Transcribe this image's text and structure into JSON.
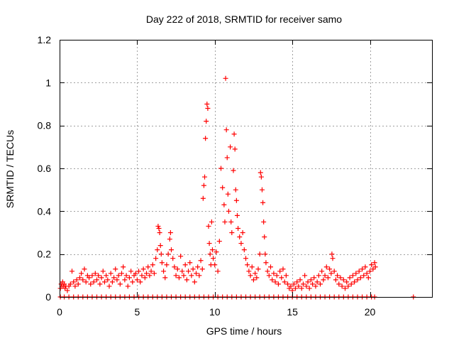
{
  "chart_data": {
    "type": "scatter",
    "title": "Day 222 of 2018, SRMTID for receiver samo",
    "xlabel": "GPS time / hours",
    "ylabel": "SRMTID / TECUs",
    "xlim": [
      0,
      24
    ],
    "ylim": [
      0,
      1.2
    ],
    "x_ticks": [
      0,
      5,
      10,
      15,
      20
    ],
    "x_tick_labels": [
      "0",
      "5",
      "10",
      "15",
      "20"
    ],
    "y_ticks": [
      0,
      0.2,
      0.4,
      0.6,
      0.8,
      1.0,
      1.2
    ],
    "y_tick_labels": [
      "0",
      "0.2",
      "0.4",
      "0.6",
      "0.8",
      "1",
      "1.2"
    ],
    "grid": true,
    "marker": "+",
    "series": [
      {
        "name": "SRMTID",
        "color": "#ff0000",
        "points": [
          [
            0.05,
            0.04
          ],
          [
            0.1,
            0.06
          ],
          [
            0.15,
            0.05
          ],
          [
            0.2,
            0.07
          ],
          [
            0.25,
            0.05
          ],
          [
            0.3,
            0.06
          ],
          [
            0.35,
            0.04
          ],
          [
            0.4,
            0.05
          ],
          [
            0.5,
            0.03
          ],
          [
            0.6,
            0.05
          ],
          [
            0.7,
            0.06
          ],
          [
            0.8,
            0.12
          ],
          [
            0.9,
            0.07
          ],
          [
            1.0,
            0.05
          ],
          [
            1.1,
            0.08
          ],
          [
            1.2,
            0.06
          ],
          [
            1.3,
            0.09
          ],
          [
            1.4,
            0.11
          ],
          [
            1.5,
            0.08
          ],
          [
            1.6,
            0.13
          ],
          [
            1.7,
            0.07
          ],
          [
            1.8,
            0.1
          ],
          [
            1.9,
            0.09
          ],
          [
            2.0,
            0.06
          ],
          [
            2.1,
            0.1
          ],
          [
            2.2,
            0.07
          ],
          [
            2.3,
            0.11
          ],
          [
            2.4,
            0.08
          ],
          [
            2.5,
            0.1
          ],
          [
            2.6,
            0.06
          ],
          [
            2.7,
            0.09
          ],
          [
            2.8,
            0.12
          ],
          [
            2.9,
            0.07
          ],
          [
            3.0,
            0.1
          ],
          [
            3.1,
            0.08
          ],
          [
            3.2,
            0.05
          ],
          [
            3.3,
            0.11
          ],
          [
            3.4,
            0.07
          ],
          [
            3.5,
            0.09
          ],
          [
            3.6,
            0.13
          ],
          [
            3.7,
            0.08
          ],
          [
            3.8,
            0.1
          ],
          [
            3.9,
            0.06
          ],
          [
            4.0,
            0.11
          ],
          [
            4.1,
            0.14
          ],
          [
            4.2,
            0.08
          ],
          [
            4.3,
            0.1
          ],
          [
            4.4,
            0.05
          ],
          [
            4.5,
            0.09
          ],
          [
            4.6,
            0.12
          ],
          [
            4.7,
            0.07
          ],
          [
            4.8,
            0.1
          ],
          [
            4.9,
            0.11
          ],
          [
            5.0,
            0.08
          ],
          [
            5.1,
            0.12
          ],
          [
            5.2,
            0.07
          ],
          [
            5.3,
            0.1
          ],
          [
            5.4,
            0.13
          ],
          [
            5.5,
            0.09
          ],
          [
            5.6,
            0.11
          ],
          [
            5.7,
            0.14
          ],
          [
            5.8,
            0.1
          ],
          [
            5.9,
            0.12
          ],
          [
            6.0,
            0.15
          ],
          [
            6.1,
            0.11
          ],
          [
            6.2,
            0.18
          ],
          [
            6.3,
            0.22
          ],
          [
            6.35,
            0.33
          ],
          [
            6.4,
            0.32
          ],
          [
            6.45,
            0.3
          ],
          [
            6.5,
            0.24
          ],
          [
            6.55,
            0.2
          ],
          [
            6.6,
            0.16
          ],
          [
            6.7,
            0.12
          ],
          [
            6.8,
            0.09
          ],
          [
            6.9,
            0.15
          ],
          [
            7.0,
            0.2
          ],
          [
            7.1,
            0.27
          ],
          [
            7.15,
            0.3
          ],
          [
            7.2,
            0.22
          ],
          [
            7.3,
            0.18
          ],
          [
            7.4,
            0.14
          ],
          [
            7.5,
            0.1
          ],
          [
            7.6,
            0.13
          ],
          [
            7.7,
            0.09
          ],
          [
            7.8,
            0.19
          ],
          [
            7.9,
            0.12
          ],
          [
            8.0,
            0.1
          ],
          [
            8.1,
            0.15
          ],
          [
            8.2,
            0.08
          ],
          [
            8.3,
            0.12
          ],
          [
            8.4,
            0.16
          ],
          [
            8.5,
            0.1
          ],
          [
            8.6,
            0.13
          ],
          [
            8.7,
            0.07
          ],
          [
            8.8,
            0.11
          ],
          [
            8.9,
            0.14
          ],
          [
            9.0,
            0.1
          ],
          [
            9.1,
            0.17
          ],
          [
            9.2,
            0.13
          ],
          [
            9.25,
            0.46
          ],
          [
            9.3,
            0.52
          ],
          [
            9.35,
            0.56
          ],
          [
            9.4,
            0.74
          ],
          [
            9.45,
            0.82
          ],
          [
            9.5,
            0.9
          ],
          [
            9.55,
            0.88
          ],
          [
            9.6,
            0.33
          ],
          [
            9.65,
            0.25
          ],
          [
            9.7,
            0.2
          ],
          [
            9.75,
            0.15
          ],
          [
            9.8,
            0.35
          ],
          [
            9.85,
            0.22
          ],
          [
            9.9,
            0.18
          ],
          [
            10.0,
            0.15
          ],
          [
            10.1,
            0.21
          ],
          [
            10.2,
            0.12
          ],
          [
            10.3,
            0.26
          ],
          [
            10.4,
            0.6
          ],
          [
            10.5,
            0.51
          ],
          [
            10.6,
            0.43
          ],
          [
            10.65,
            0.35
          ],
          [
            10.7,
            1.02
          ],
          [
            10.75,
            0.78
          ],
          [
            10.8,
            0.65
          ],
          [
            10.85,
            0.48
          ],
          [
            10.9,
            0.4
          ],
          [
            11.0,
            0.7
          ],
          [
            11.05,
            0.35
          ],
          [
            11.1,
            0.3
          ],
          [
            11.2,
            0.59
          ],
          [
            11.25,
            0.76
          ],
          [
            11.3,
            0.69
          ],
          [
            11.35,
            0.5
          ],
          [
            11.4,
            0.45
          ],
          [
            11.45,
            0.38
          ],
          [
            11.5,
            0.32
          ],
          [
            11.6,
            0.28
          ],
          [
            11.7,
            0.25
          ],
          [
            11.8,
            0.3
          ],
          [
            11.9,
            0.22
          ],
          [
            12.0,
            0.18
          ],
          [
            12.1,
            0.15
          ],
          [
            12.2,
            0.12
          ],
          [
            12.3,
            0.1
          ],
          [
            12.4,
            0.14
          ],
          [
            12.5,
            0.08
          ],
          [
            12.6,
            0.11
          ],
          [
            12.7,
            0.09
          ],
          [
            12.8,
            0.13
          ],
          [
            12.9,
            0.2
          ],
          [
            12.95,
            0.58
          ],
          [
            13.0,
            0.56
          ],
          [
            13.05,
            0.5
          ],
          [
            13.1,
            0.44
          ],
          [
            13.15,
            0.35
          ],
          [
            13.2,
            0.28
          ],
          [
            13.25,
            0.2
          ],
          [
            13.3,
            0.16
          ],
          [
            13.4,
            0.12
          ],
          [
            13.5,
            0.1
          ],
          [
            13.6,
            0.14
          ],
          [
            13.7,
            0.08
          ],
          [
            13.8,
            0.11
          ],
          [
            13.9,
            0.07
          ],
          [
            14.0,
            0.1
          ],
          [
            14.1,
            0.06
          ],
          [
            14.2,
            0.12
          ],
          [
            14.3,
            0.09
          ],
          [
            14.4,
            0.13
          ],
          [
            14.5,
            0.07
          ],
          [
            14.6,
            0.1
          ],
          [
            14.7,
            0.06
          ],
          [
            14.8,
            0.04
          ],
          [
            14.9,
            0.05
          ],
          [
            15.0,
            0.03
          ],
          [
            15.1,
            0.06
          ],
          [
            15.2,
            0.04
          ],
          [
            15.3,
            0.07
          ],
          [
            15.4,
            0.05
          ],
          [
            15.5,
            0.08
          ],
          [
            15.6,
            0.04
          ],
          [
            15.7,
            0.06
          ],
          [
            15.8,
            0.1
          ],
          [
            15.9,
            0.05
          ],
          [
            16.0,
            0.07
          ],
          [
            16.1,
            0.04
          ],
          [
            16.2,
            0.08
          ],
          [
            16.3,
            0.06
          ],
          [
            16.4,
            0.09
          ],
          [
            16.5,
            0.05
          ],
          [
            16.6,
            0.07
          ],
          [
            16.7,
            0.1
          ],
          [
            16.8,
            0.06
          ],
          [
            16.9,
            0.12
          ],
          [
            17.0,
            0.08
          ],
          [
            17.1,
            0.1
          ],
          [
            17.2,
            0.14
          ],
          [
            17.3,
            0.09
          ],
          [
            17.4,
            0.13
          ],
          [
            17.5,
            0.11
          ],
          [
            17.55,
            0.2
          ],
          [
            17.6,
            0.18
          ],
          [
            17.7,
            0.12
          ],
          [
            17.8,
            0.08
          ],
          [
            17.9,
            0.1
          ],
          [
            18.0,
            0.06
          ],
          [
            18.1,
            0.09
          ],
          [
            18.2,
            0.05
          ],
          [
            18.3,
            0.08
          ],
          [
            18.4,
            0.04
          ],
          [
            18.5,
            0.07
          ],
          [
            18.6,
            0.05
          ],
          [
            18.7,
            0.09
          ],
          [
            18.8,
            0.06
          ],
          [
            18.9,
            0.1
          ],
          [
            19.0,
            0.07
          ],
          [
            19.1,
            0.11
          ],
          [
            19.2,
            0.08
          ],
          [
            19.3,
            0.12
          ],
          [
            19.4,
            0.09
          ],
          [
            19.5,
            0.13
          ],
          [
            19.6,
            0.1
          ],
          [
            19.7,
            0.14
          ],
          [
            19.8,
            0.11
          ],
          [
            19.9,
            0.09
          ],
          [
            20.0,
            0.12
          ],
          [
            20.1,
            0.15
          ],
          [
            20.2,
            0.13
          ],
          [
            20.3,
            0.16
          ],
          [
            20.35,
            0.14
          ],
          [
            0.05,
            0.0
          ],
          [
            0.3,
            0.0
          ],
          [
            0.6,
            0.0
          ],
          [
            0.9,
            0.0
          ],
          [
            1.2,
            0.0
          ],
          [
            1.5,
            0.0
          ],
          [
            1.8,
            0.0
          ],
          [
            2.1,
            0.0
          ],
          [
            2.4,
            0.0
          ],
          [
            2.7,
            0.0
          ],
          [
            3.0,
            0.0
          ],
          [
            3.3,
            0.0
          ],
          [
            3.6,
            0.0
          ],
          [
            3.9,
            0.0
          ],
          [
            4.2,
            0.0
          ],
          [
            4.5,
            0.0
          ],
          [
            4.8,
            0.0
          ],
          [
            5.1,
            0.0
          ],
          [
            5.4,
            0.0
          ],
          [
            5.7,
            0.0
          ],
          [
            6.0,
            0.0
          ],
          [
            6.3,
            0.0
          ],
          [
            6.6,
            0.0
          ],
          [
            6.9,
            0.0
          ],
          [
            7.2,
            0.0
          ],
          [
            7.5,
            0.0
          ],
          [
            7.8,
            0.0
          ],
          [
            8.1,
            0.0
          ],
          [
            8.4,
            0.0
          ],
          [
            8.7,
            0.0
          ],
          [
            9.0,
            0.0
          ],
          [
            9.3,
            0.0
          ],
          [
            9.6,
            0.0
          ],
          [
            9.9,
            0.0
          ],
          [
            10.2,
            0.0
          ],
          [
            10.5,
            0.0
          ],
          [
            10.8,
            0.0
          ],
          [
            11.1,
            0.0
          ],
          [
            11.4,
            0.0
          ],
          [
            11.7,
            0.0
          ],
          [
            12.0,
            0.0
          ],
          [
            12.3,
            0.0
          ],
          [
            12.6,
            0.0
          ],
          [
            12.9,
            0.0
          ],
          [
            13.2,
            0.0
          ],
          [
            13.5,
            0.0
          ],
          [
            13.8,
            0.0
          ],
          [
            14.1,
            0.0
          ],
          [
            14.4,
            0.0
          ],
          [
            14.7,
            0.0
          ],
          [
            15.0,
            0.0
          ],
          [
            15.3,
            0.0
          ],
          [
            15.6,
            0.0
          ],
          [
            15.9,
            0.0
          ],
          [
            16.2,
            0.0
          ],
          [
            16.5,
            0.0
          ],
          [
            16.8,
            0.0
          ],
          [
            17.1,
            0.0
          ],
          [
            17.4,
            0.0
          ],
          [
            17.7,
            0.0
          ],
          [
            18.0,
            0.0
          ],
          [
            18.3,
            0.0
          ],
          [
            18.6,
            0.0
          ],
          [
            18.9,
            0.0
          ],
          [
            19.2,
            0.0
          ],
          [
            19.5,
            0.0
          ],
          [
            19.8,
            0.0
          ],
          [
            20.1,
            0.0
          ],
          [
            20.3,
            0.0
          ],
          [
            22.8,
            0.0
          ]
        ]
      }
    ]
  }
}
